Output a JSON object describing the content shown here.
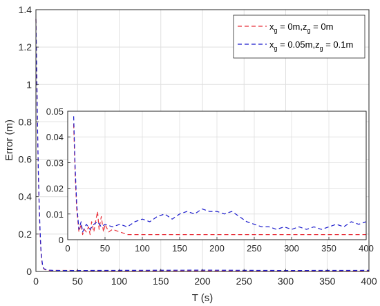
{
  "chart_data": [
    {
      "type": "line",
      "title": "",
      "xlabel": "T (s)",
      "ylabel": "Error (m)",
      "xlim": [
        0,
        400
      ],
      "ylim": [
        0,
        1.4
      ],
      "xticks": [
        0,
        50,
        100,
        150,
        200,
        250,
        300,
        350,
        400
      ],
      "xtick_labels": [
        "0",
        "50",
        "100",
        "150",
        "200",
        "250",
        "300",
        "350",
        "400"
      ],
      "yticks": [
        0,
        0.2,
        0.4,
        0.6,
        0.8,
        1,
        1.2,
        1.4
      ],
      "ytick_labels": [
        "0",
        "0.2",
        "0.4",
        "0.6",
        "0.8",
        "1",
        "1.2",
        "1.4"
      ],
      "grid": true,
      "legend": {
        "placement": "top-right",
        "entries": [
          {
            "pre": "x",
            "sub1": "g",
            "mid": " = 0m,z",
            "sub2": "g",
            "post": " = 0m",
            "color": "#e8303a"
          },
          {
            "pre": "x",
            "sub1": "g",
            "mid": " = 0.05m,z",
            "sub2": "g",
            "post": " = 0.1m",
            "color": "#1a1acc"
          }
        ]
      },
      "series": [
        {
          "color": "#e8303a",
          "style": "dashed",
          "x": [
            0,
            1,
            2,
            3,
            4,
            5,
            6,
            7,
            8,
            9,
            10,
            12,
            15,
            20,
            30,
            50,
            100,
            200,
            300,
            400
          ],
          "y": [
            1.35,
            1.05,
            0.74,
            0.5,
            0.33,
            0.2,
            0.11,
            0.06,
            0.03,
            0.018,
            0.012,
            0.008,
            0.006,
            0.005,
            0.006,
            0.005,
            0.003,
            0.003,
            0.003,
            0.003
          ]
        },
        {
          "color": "#1a1acc",
          "style": "dashed",
          "x": [
            0,
            1,
            2,
            3,
            4,
            5,
            6,
            7,
            8,
            9,
            10,
            12,
            15,
            20,
            30,
            50,
            100,
            200,
            300,
            400
          ],
          "y": [
            1.35,
            1.06,
            0.76,
            0.52,
            0.35,
            0.22,
            0.12,
            0.07,
            0.035,
            0.02,
            0.014,
            0.01,
            0.007,
            0.006,
            0.005,
            0.005,
            0.006,
            0.007,
            0.005,
            0.006
          ]
        }
      ]
    },
    {
      "type": "line",
      "title": "",
      "xlabel": "",
      "ylabel": "",
      "xlim": [
        0,
        400
      ],
      "ylim": [
        0,
        0.05
      ],
      "xticks": [
        0,
        50,
        100,
        150,
        200,
        250,
        300,
        350,
        400
      ],
      "xtick_labels": [
        "0",
        "50",
        "100",
        "150",
        "200",
        "250",
        "300",
        "350",
        "400"
      ],
      "yticks": [
        0,
        0.01,
        0.02,
        0.03,
        0.04,
        0.05
      ],
      "ytick_labels": [
        "0",
        "0.01",
        "0.02",
        "0.03",
        "0.04",
        "0.05"
      ],
      "grid": true,
      "series": [
        {
          "color": "#e8303a",
          "style": "dashed",
          "x": [
            8,
            10,
            12,
            15,
            18,
            20,
            22,
            25,
            28,
            30,
            32,
            35,
            38,
            40,
            42,
            45,
            48,
            50,
            55,
            60,
            70,
            80,
            100,
            150,
            200,
            250,
            300,
            350,
            400
          ],
          "y": [
            0.045,
            0.025,
            0.012,
            0.003,
            0.006,
            0.002,
            0.004,
            0.003,
            0.005,
            0.002,
            0.007,
            0.003,
            0.008,
            0.011,
            0.004,
            0.009,
            0.003,
            0.006,
            0.003,
            0.004,
            0.003,
            0.002,
            0.002,
            0.002,
            0.002,
            0.002,
            0.002,
            0.002,
            0.002
          ]
        },
        {
          "color": "#1a1acc",
          "style": "dashed",
          "x": [
            8,
            10,
            12,
            15,
            18,
            20,
            25,
            30,
            35,
            40,
            45,
            50,
            60,
            70,
            80,
            90,
            100,
            110,
            120,
            130,
            140,
            150,
            160,
            170,
            180,
            190,
            200,
            210,
            220,
            230,
            240,
            250,
            260,
            270,
            280,
            290,
            300,
            310,
            320,
            330,
            340,
            350,
            360,
            370,
            380,
            390,
            400
          ],
          "y": [
            0.048,
            0.028,
            0.014,
            0.004,
            0.007,
            0.003,
            0.006,
            0.004,
            0.006,
            0.007,
            0.005,
            0.006,
            0.005,
            0.006,
            0.005,
            0.007,
            0.008,
            0.007,
            0.009,
            0.01,
            0.008,
            0.01,
            0.011,
            0.01,
            0.012,
            0.011,
            0.011,
            0.01,
            0.011,
            0.009,
            0.007,
            0.006,
            0.005,
            0.005,
            0.004,
            0.005,
            0.004,
            0.005,
            0.004,
            0.005,
            0.004,
            0.005,
            0.006,
            0.005,
            0.007,
            0.006,
            0.007
          ]
        }
      ]
    }
  ]
}
